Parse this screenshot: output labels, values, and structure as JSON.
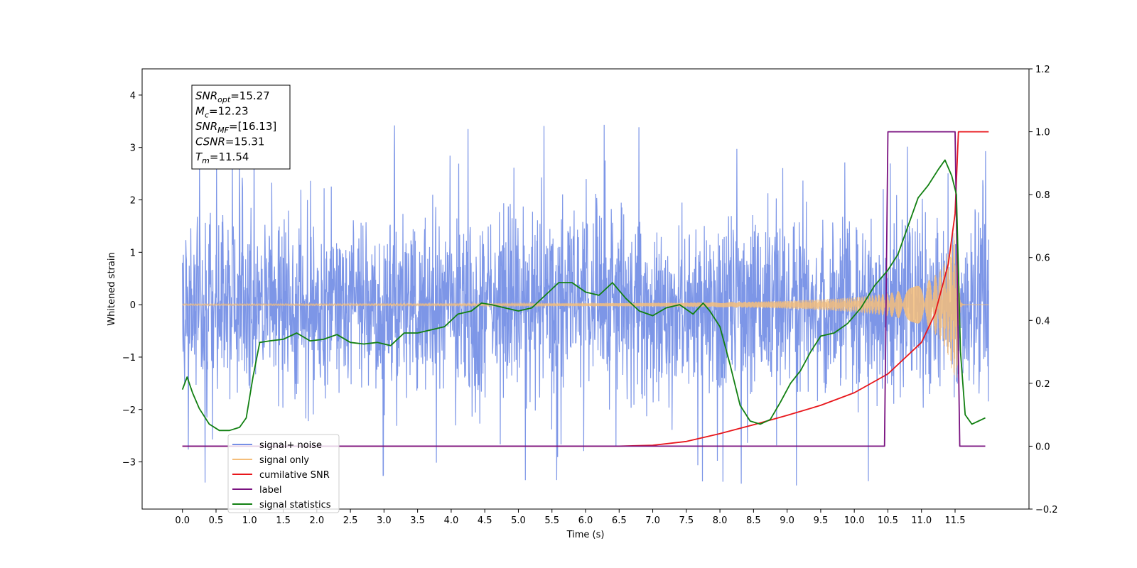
{
  "chart_data": {
    "type": "line",
    "title": "",
    "xlabel": "Time (s)",
    "ylabel": "Whitened strain",
    "y2label": "",
    "xlim": [
      -0.6,
      12.6
    ],
    "ylim": [
      -3.9,
      4.5
    ],
    "y2lim": [
      -0.2,
      1.2
    ],
    "xticks": [
      "0.0",
      "0.5",
      "1.0",
      "1.5",
      "2.0",
      "2.5",
      "3.0",
      "3.5",
      "4.0",
      "4.5",
      "5.0",
      "5.5",
      "6.0",
      "6.5",
      "7.0",
      "7.5",
      "8.0",
      "8.5",
      "9.0",
      "9.5",
      "10.0",
      "10.5",
      "11.0",
      "11.5"
    ],
    "yticks": [
      "4",
      "3",
      "2",
      "1",
      "0",
      "−1",
      "−2",
      "−3"
    ],
    "y2ticks": [
      "1.2",
      "1.0",
      "0.8",
      "0.6",
      "0.4",
      "0.2",
      "0.0",
      "−0.2"
    ],
    "grid": false,
    "legend_position": "lower-left",
    "annotation": {
      "lines": [
        {
          "main": "SNR",
          "sub": "opt",
          "value": "=15.27"
        },
        {
          "main": "M",
          "sub": "c",
          "value": "=12.23"
        },
        {
          "main": "SNR",
          "sub": "MF",
          "value": "=[16.13]"
        },
        {
          "main": "CSNR",
          "sub": "",
          "value": "=15.31"
        },
        {
          "main": "T",
          "sub": "m",
          "value": "=11.54"
        }
      ]
    },
    "series": [
      {
        "name": "signal+ noise",
        "color": "#7690e6",
        "axis": "left",
        "noise": {
          "t_start": 0.0,
          "t_end": 12.0,
          "sigma": 1.05,
          "typical_max": 2.7,
          "peaks_max": [
            3.5,
            4.1
          ]
        }
      },
      {
        "name": "signal only",
        "color": "#f5be7a",
        "axis": "left",
        "chirp": {
          "t_start": 0.0,
          "t_end": 12.0,
          "t_merger": 11.54,
          "peak_amplitude": 1.4,
          "amplitude_at_t0": 0.02
        }
      },
      {
        "name": "cumilative SNR",
        "color": "#e8161b",
        "axis": "right",
        "points": [
          [
            0.0,
            0.0
          ],
          [
            6.5,
            0.0
          ],
          [
            7.0,
            0.003
          ],
          [
            7.5,
            0.015
          ],
          [
            8.0,
            0.04
          ],
          [
            8.5,
            0.068
          ],
          [
            9.0,
            0.098
          ],
          [
            9.5,
            0.13
          ],
          [
            10.0,
            0.17
          ],
          [
            10.5,
            0.23
          ],
          [
            11.0,
            0.33
          ],
          [
            11.2,
            0.42
          ],
          [
            11.4,
            0.58
          ],
          [
            11.5,
            0.74
          ],
          [
            11.55,
            1.0
          ],
          [
            12.0,
            1.0
          ]
        ]
      },
      {
        "name": "label",
        "color": "#7a1280",
        "axis": "right",
        "points": [
          [
            0.0,
            0.0
          ],
          [
            10.45,
            0.0
          ],
          [
            10.5,
            1.0
          ],
          [
            11.5,
            1.0
          ],
          [
            11.57,
            0.0
          ],
          [
            11.95,
            0.0
          ]
        ]
      },
      {
        "name": "signal statistics",
        "color": "#128012",
        "axis": "right",
        "points": [
          [
            0.0,
            0.18
          ],
          [
            0.07,
            0.22
          ],
          [
            0.15,
            0.17
          ],
          [
            0.25,
            0.12
          ],
          [
            0.4,
            0.07
          ],
          [
            0.55,
            0.05
          ],
          [
            0.7,
            0.05
          ],
          [
            0.85,
            0.06
          ],
          [
            0.95,
            0.09
          ],
          [
            1.05,
            0.22
          ],
          [
            1.15,
            0.33
          ],
          [
            1.3,
            0.335
          ],
          [
            1.5,
            0.34
          ],
          [
            1.7,
            0.36
          ],
          [
            1.9,
            0.335
          ],
          [
            2.1,
            0.34
          ],
          [
            2.3,
            0.355
          ],
          [
            2.5,
            0.33
          ],
          [
            2.7,
            0.325
          ],
          [
            2.9,
            0.33
          ],
          [
            3.1,
            0.32
          ],
          [
            3.3,
            0.36
          ],
          [
            3.5,
            0.36
          ],
          [
            3.7,
            0.37
          ],
          [
            3.9,
            0.38
          ],
          [
            4.1,
            0.42
          ],
          [
            4.3,
            0.43
          ],
          [
            4.45,
            0.455
          ],
          [
            4.6,
            0.45
          ],
          [
            4.8,
            0.44
          ],
          [
            5.0,
            0.43
          ],
          [
            5.2,
            0.44
          ],
          [
            5.4,
            0.48
          ],
          [
            5.6,
            0.52
          ],
          [
            5.8,
            0.52
          ],
          [
            6.0,
            0.49
          ],
          [
            6.2,
            0.48
          ],
          [
            6.4,
            0.52
          ],
          [
            6.6,
            0.47
          ],
          [
            6.8,
            0.43
          ],
          [
            7.0,
            0.415
          ],
          [
            7.2,
            0.44
          ],
          [
            7.4,
            0.45
          ],
          [
            7.6,
            0.42
          ],
          [
            7.75,
            0.455
          ],
          [
            7.85,
            0.43
          ],
          [
            8.0,
            0.38
          ],
          [
            8.15,
            0.26
          ],
          [
            8.3,
            0.13
          ],
          [
            8.45,
            0.08
          ],
          [
            8.6,
            0.07
          ],
          [
            8.75,
            0.085
          ],
          [
            8.9,
            0.14
          ],
          [
            9.05,
            0.2
          ],
          [
            9.2,
            0.24
          ],
          [
            9.35,
            0.3
          ],
          [
            9.5,
            0.35
          ],
          [
            9.7,
            0.36
          ],
          [
            9.9,
            0.39
          ],
          [
            10.1,
            0.44
          ],
          [
            10.3,
            0.51
          ],
          [
            10.5,
            0.56
          ],
          [
            10.65,
            0.61
          ],
          [
            10.8,
            0.7
          ],
          [
            10.95,
            0.79
          ],
          [
            11.1,
            0.83
          ],
          [
            11.25,
            0.88
          ],
          [
            11.35,
            0.91
          ],
          [
            11.45,
            0.86
          ],
          [
            11.52,
            0.8
          ],
          [
            11.58,
            0.3
          ],
          [
            11.65,
            0.1
          ],
          [
            11.75,
            0.07
          ],
          [
            11.85,
            0.08
          ],
          [
            11.95,
            0.09
          ]
        ]
      }
    ],
    "legend": [
      {
        "label": "signal+ noise",
        "color": "#7690e6"
      },
      {
        "label": "signal only",
        "color": "#f5be7a"
      },
      {
        "label": "cumilative SNR",
        "color": "#e8161b"
      },
      {
        "label": "label",
        "color": "#7a1280"
      },
      {
        "label": "signal statistics",
        "color": "#128012"
      }
    ]
  }
}
